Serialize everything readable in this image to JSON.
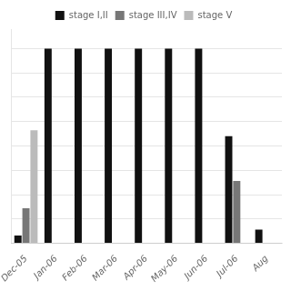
{
  "chart_data": {
    "type": "bar",
    "categories": [
      "Dec-05",
      "Jan-06",
      "Feb-06",
      "Mar-06",
      "Apr-06",
      "May-06",
      "Jun-06",
      "Jul-06",
      "Aug"
    ],
    "series": [
      {
        "name": "stage I,II",
        "color": "#111111",
        "values": [
          4,
          100,
          100,
          100,
          100,
          100,
          100,
          55,
          7
        ]
      },
      {
        "name": "stage III,IV",
        "color": "#777777",
        "values": [
          18,
          0,
          0,
          0,
          0,
          0,
          0,
          32,
          0
        ]
      },
      {
        "name": "stage V",
        "color": "#bbbbbb",
        "values": [
          58,
          0,
          0,
          0,
          0,
          0,
          0,
          0,
          0
        ]
      }
    ],
    "ylim": [
      0,
      110
    ],
    "yticks": [
      0,
      12.5,
      25,
      37.5,
      50,
      62.5,
      75,
      87.5,
      100
    ],
    "grid": true,
    "legend": "top",
    "tick_labels": "x"
  }
}
